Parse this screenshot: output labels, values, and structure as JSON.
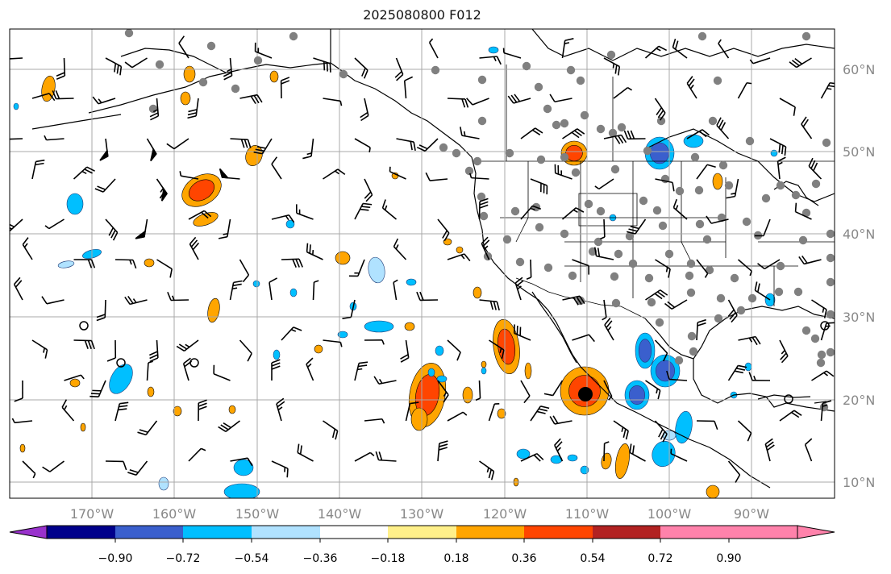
{
  "title": "2025080800 F012",
  "lat_labels": [
    "60°N",
    "50°N",
    "40°N",
    "30°N",
    "20°N",
    "10°N"
  ],
  "lon_labels": [
    "170°W",
    "160°W",
    "150°W",
    "140°W",
    "130°W",
    "120°W",
    "110°W",
    "100°W",
    "90°W"
  ],
  "colorbar": {
    "tick_labels": [
      "−0.90",
      "−0.72",
      "−0.54",
      "−0.36",
      "−0.18",
      "0.18",
      "0.36",
      "0.54",
      "0.72",
      "0.90"
    ],
    "colors": [
      "#9932cc",
      "#00008b",
      "#3a5fcd",
      "#00bfff",
      "#b0e2ff",
      "#ffffff",
      "#fff08a",
      "#ffa500",
      "#ff4500",
      "#b22222",
      "#ff82ab"
    ]
  },
  "fill_colors": {
    "blue_light": "#b0e2ff",
    "blue": "#00bfff",
    "blue_dark": "#3a5fcd",
    "yellow": "#fff08a",
    "orange": "#ffa500",
    "red": "#ff4500"
  },
  "marker_colors": {
    "gray_dot": "#808080",
    "center_dot": "#000000"
  }
}
